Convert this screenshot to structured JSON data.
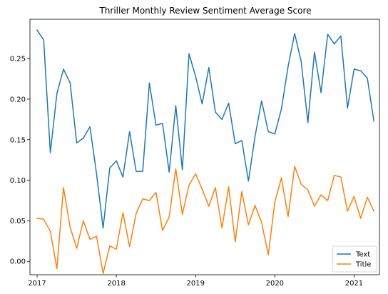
{
  "chart_data": {
    "type": "line",
    "title": "Thriller Monthly Review Sentiment Average Score",
    "xlabel": "",
    "ylabel": "",
    "xlim": [
      2016.91,
      2021.32
    ],
    "ylim": [
      -0.0165,
      0.2985
    ],
    "grid": false,
    "legend_position": "lower-right",
    "x_ticks": [
      2017,
      2018,
      2019,
      2020,
      2021
    ],
    "x_tick_labels": [
      "2017",
      "2018",
      "2019",
      "2020",
      "2021"
    ],
    "y_ticks": [
      0.0,
      0.05,
      0.1,
      0.15,
      0.2,
      0.25
    ],
    "y_tick_labels": [
      "0.00",
      "0.05",
      "0.10",
      "0.15",
      "0.20",
      "0.25"
    ],
    "series": [
      {
        "name": "Text",
        "color": "#1f77b4",
        "x": [
          2017.0,
          2017.083,
          2017.167,
          2017.25,
          2017.333,
          2017.417,
          2017.5,
          2017.583,
          2017.667,
          2017.75,
          2017.833,
          2017.917,
          2018.0,
          2018.083,
          2018.167,
          2018.25,
          2018.333,
          2018.417,
          2018.5,
          2018.583,
          2018.667,
          2018.75,
          2018.833,
          2018.917,
          2019.0,
          2019.083,
          2019.167,
          2019.25,
          2019.333,
          2019.417,
          2019.5,
          2019.583,
          2019.667,
          2019.75,
          2019.833,
          2019.917,
          2020.0,
          2020.083,
          2020.167,
          2020.25,
          2020.333,
          2020.417,
          2020.5,
          2020.583,
          2020.667,
          2020.75,
          2020.833,
          2020.917,
          2021.0,
          2021.083,
          2021.167,
          2021.25
        ],
        "values": [
          0.285,
          0.273,
          0.134,
          0.207,
          0.237,
          0.22,
          0.146,
          0.152,
          0.166,
          0.108,
          0.041,
          0.115,
          0.124,
          0.104,
          0.16,
          0.111,
          0.111,
          0.22,
          0.168,
          0.17,
          0.11,
          0.192,
          0.113,
          0.256,
          0.228,
          0.194,
          0.239,
          0.184,
          0.175,
          0.195,
          0.145,
          0.149,
          0.099,
          0.154,
          0.198,
          0.16,
          0.157,
          0.188,
          0.24,
          0.281,
          0.246,
          0.171,
          0.258,
          0.208,
          0.28,
          0.268,
          0.278,
          0.189,
          0.237,
          0.235,
          0.226,
          0.173
        ]
      },
      {
        "name": "Title",
        "color": "#ff7f0e",
        "x": [
          2017.0,
          2017.083,
          2017.167,
          2017.25,
          2017.333,
          2017.417,
          2017.5,
          2017.583,
          2017.667,
          2017.75,
          2017.833,
          2017.917,
          2018.0,
          2018.083,
          2018.167,
          2018.25,
          2018.333,
          2018.417,
          2018.5,
          2018.583,
          2018.667,
          2018.75,
          2018.833,
          2018.917,
          2019.0,
          2019.083,
          2019.167,
          2019.25,
          2019.333,
          2019.417,
          2019.5,
          2019.583,
          2019.667,
          2019.75,
          2019.833,
          2019.917,
          2020.0,
          2020.083,
          2020.167,
          2020.25,
          2020.333,
          2020.417,
          2020.5,
          2020.583,
          2020.667,
          2020.75,
          2020.833,
          2020.917,
          2021.0,
          2021.083,
          2021.167,
          2021.25
        ],
        "values": [
          0.053,
          0.052,
          0.037,
          -0.009,
          0.091,
          0.042,
          0.016,
          0.05,
          0.027,
          0.031,
          -0.015,
          0.019,
          0.015,
          0.06,
          0.018,
          0.059,
          0.077,
          0.075,
          0.085,
          0.038,
          0.055,
          0.114,
          0.058,
          0.094,
          0.108,
          0.089,
          0.068,
          0.091,
          0.041,
          0.092,
          0.024,
          0.086,
          0.045,
          0.069,
          0.048,
          0.008,
          0.073,
          0.103,
          0.055,
          0.117,
          0.095,
          0.088,
          0.068,
          0.082,
          0.075,
          0.106,
          0.104,
          0.062,
          0.08,
          0.053,
          0.079,
          0.062
        ]
      }
    ]
  }
}
